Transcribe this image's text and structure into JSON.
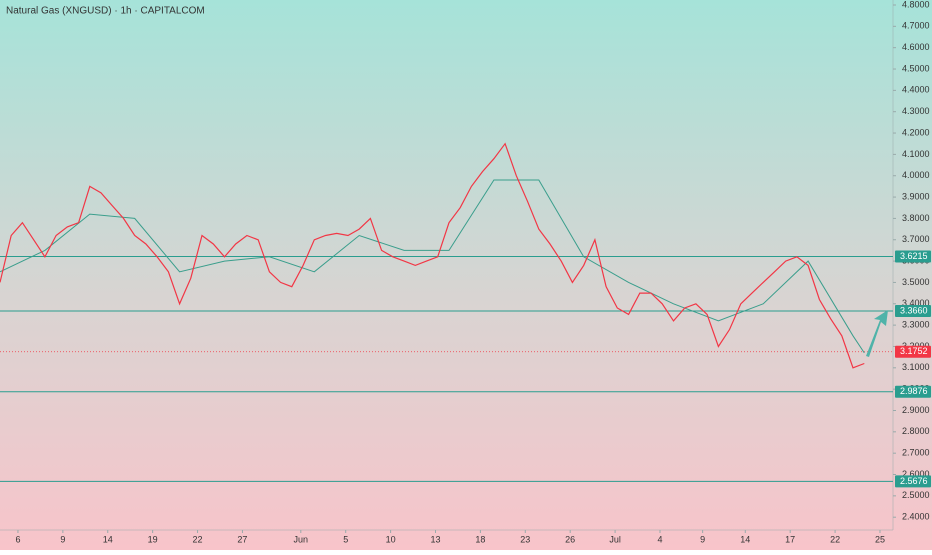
{
  "chart_data": {
    "type": "line",
    "title": "Natural Gas (XNGUSD) · 1h · CAPITALCOM",
    "ylim": [
      2.34,
      4.8234
    ],
    "xlim": [
      -0.4,
      19.49
    ],
    "yticks": [
      {
        "value": 2.4,
        "label": "2.4000"
      },
      {
        "value": 2.5,
        "label": "2.5000"
      },
      {
        "value": 2.6,
        "label": "2.6000"
      },
      {
        "value": 2.7,
        "label": "2.7000"
      },
      {
        "value": 2.8,
        "label": "2.8000"
      },
      {
        "value": 2.9,
        "label": "2.9000"
      },
      {
        "value": 3.0,
        "label": "3.0000"
      },
      {
        "value": 3.1,
        "label": "3.1000"
      },
      {
        "value": 3.2,
        "label": "3.2000"
      },
      {
        "value": 3.3,
        "label": "3.3000"
      },
      {
        "value": 3.4,
        "label": "3.4000"
      },
      {
        "value": 3.5,
        "label": "3.5000"
      },
      {
        "value": 3.6,
        "label": "3.6000"
      },
      {
        "value": 3.7,
        "label": "3.7000"
      },
      {
        "value": 3.8,
        "label": "3.8000"
      },
      {
        "value": 3.9,
        "label": "3.9000"
      },
      {
        "value": 4.0,
        "label": "4.0000"
      },
      {
        "value": 4.1,
        "label": "4.1000"
      },
      {
        "value": 4.2,
        "label": "4.2000"
      },
      {
        "value": 4.3,
        "label": "4.3000"
      },
      {
        "value": 4.4,
        "label": "4.4000"
      },
      {
        "value": 4.5,
        "label": "4.5000"
      },
      {
        "value": 4.6,
        "label": "4.6000"
      },
      {
        "value": 4.7,
        "label": "4.7000"
      },
      {
        "value": 4.8,
        "label": "4.8000"
      }
    ],
    "xticks": [
      {
        "value": 0,
        "label": "6"
      },
      {
        "value": 1,
        "label": "9"
      },
      {
        "value": 2,
        "label": "14"
      },
      {
        "value": 3,
        "label": "19"
      },
      {
        "value": 4,
        "label": "22"
      },
      {
        "value": 5,
        "label": "27"
      },
      {
        "value": 6.3,
        "label": "Jun"
      },
      {
        "value": 7.3,
        "label": "5"
      },
      {
        "value": 8.3,
        "label": "10"
      },
      {
        "value": 9.3,
        "label": "13"
      },
      {
        "value": 10.3,
        "label": "18"
      },
      {
        "value": 11.3,
        "label": "23"
      },
      {
        "value": 12.3,
        "label": "26"
      },
      {
        "value": 13.3,
        "label": "Jul"
      },
      {
        "value": 14.3,
        "label": "4"
      },
      {
        "value": 15.25,
        "label": "9"
      },
      {
        "value": 16.2,
        "label": "14"
      },
      {
        "value": 17.2,
        "label": "17"
      },
      {
        "value": 18.2,
        "label": "22"
      },
      {
        "value": 19.2,
        "label": "25"
      }
    ],
    "series": [
      {
        "color": "#f23645",
        "x": [
          -0.4,
          -0.15,
          0.1,
          0.35,
          0.6,
          0.85,
          1.1,
          1.35,
          1.6,
          1.85,
          2.1,
          2.35,
          2.6,
          2.85,
          3.1,
          3.35,
          3.6,
          3.85,
          4.1,
          4.35,
          4.6,
          4.85,
          5.1,
          5.35,
          5.6,
          5.85,
          6.1,
          6.35,
          6.6,
          6.85,
          7.1,
          7.35,
          7.6,
          7.85,
          8.1,
          8.35,
          8.6,
          8.85,
          9.1,
          9.35,
          9.6,
          9.85,
          10.1,
          10.35,
          10.6,
          10.85,
          11.1,
          11.35,
          11.6,
          11.85,
          12.1,
          12.35,
          12.6,
          12.85,
          13.1,
          13.35,
          13.6,
          13.85,
          14.1,
          14.35,
          14.6,
          14.85,
          15.1,
          15.35,
          15.6,
          15.85,
          16.1,
          16.35,
          16.6,
          16.85,
          17.1,
          17.35,
          17.6,
          17.85,
          18.1,
          18.35,
          18.6,
          18.85
        ],
        "values": [
          3.5,
          3.72,
          3.78,
          3.7,
          3.62,
          3.72,
          3.76,
          3.78,
          3.95,
          3.92,
          3.86,
          3.8,
          3.72,
          3.68,
          3.62,
          3.55,
          3.4,
          3.52,
          3.72,
          3.68,
          3.62,
          3.68,
          3.72,
          3.7,
          3.55,
          3.5,
          3.48,
          3.58,
          3.7,
          3.72,
          3.73,
          3.72,
          3.75,
          3.8,
          3.65,
          3.62,
          3.6,
          3.58,
          3.6,
          3.62,
          3.78,
          3.85,
          3.95,
          4.02,
          4.08,
          4.15,
          4.0,
          3.88,
          3.75,
          3.68,
          3.6,
          3.5,
          3.58,
          3.7,
          3.48,
          3.38,
          3.35,
          3.45,
          3.45,
          3.4,
          3.32,
          3.38,
          3.4,
          3.35,
          3.2,
          3.28,
          3.4,
          3.45,
          3.5,
          3.55,
          3.6,
          3.62,
          3.58,
          3.42,
          3.33,
          3.25,
          3.1,
          3.12
        ]
      },
      {
        "color": "#3a9e8c",
        "x": [
          -0.4,
          0.6,
          1.6,
          2.6,
          3.6,
          4.6,
          5.6,
          6.6,
          7.6,
          8.6,
          9.6,
          10.6,
          11.6,
          12.6,
          13.6,
          14.6,
          15.6,
          16.6,
          17.6,
          18.6,
          18.85
        ],
        "values": [
          3.55,
          3.65,
          3.82,
          3.8,
          3.55,
          3.6,
          3.62,
          3.55,
          3.72,
          3.65,
          3.65,
          3.98,
          3.98,
          3.62,
          3.5,
          3.4,
          3.32,
          3.4,
          3.6,
          3.25,
          3.17
        ]
      }
    ],
    "levels": [
      3.6215,
      {
        "value": 3.366,
        "label": "3.3660"
      },
      2.9876,
      2.5676
    ],
    "level_color": "#2a9d8f",
    "last_price": 3.1752,
    "last_price_color": "#f23645"
  }
}
